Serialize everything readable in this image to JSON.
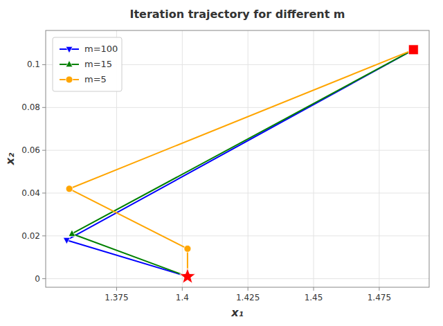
{
  "chart_data": {
    "type": "line",
    "title": "Iteration trajectory for different m",
    "x_label": "x₁",
    "y_label": "x₂",
    "xlim": [
      1.348,
      1.494
    ],
    "ylim": [
      -0.004,
      0.116
    ],
    "xticks": [
      1.375,
      1.4,
      1.425,
      1.45,
      1.475
    ],
    "yticks": [
      0,
      0.02,
      0.04,
      0.06,
      0.08,
      0.1
    ],
    "grid": true,
    "legend": "upper-left",
    "series": [
      {
        "name": "m=100",
        "color": "#0000ff",
        "marker": "triangle-down",
        "x": [
          1.488,
          1.356,
          1.402
        ],
        "values": [
          0.107,
          0.018,
          0.001
        ]
      },
      {
        "name": "m=15",
        "color": "#008000",
        "marker": "triangle-up",
        "x": [
          1.488,
          1.358,
          1.402
        ],
        "values": [
          0.107,
          0.021,
          0.001
        ]
      },
      {
        "name": "m=5",
        "color": "#ffa500",
        "marker": "circle",
        "x": [
          1.488,
          1.357,
          1.402,
          1.402
        ],
        "values": [
          0.107,
          0.042,
          0.014,
          0.001
        ]
      },
      {
        "type": "scatter",
        "color": "red",
        "marker": "square",
        "x": [
          1.488
        ],
        "values": [
          0.107
        ]
      },
      {
        "type": "scatter",
        "color": "red",
        "marker": "star",
        "x": [
          1.402
        ],
        "values": [
          0.001
        ]
      }
    ]
  }
}
